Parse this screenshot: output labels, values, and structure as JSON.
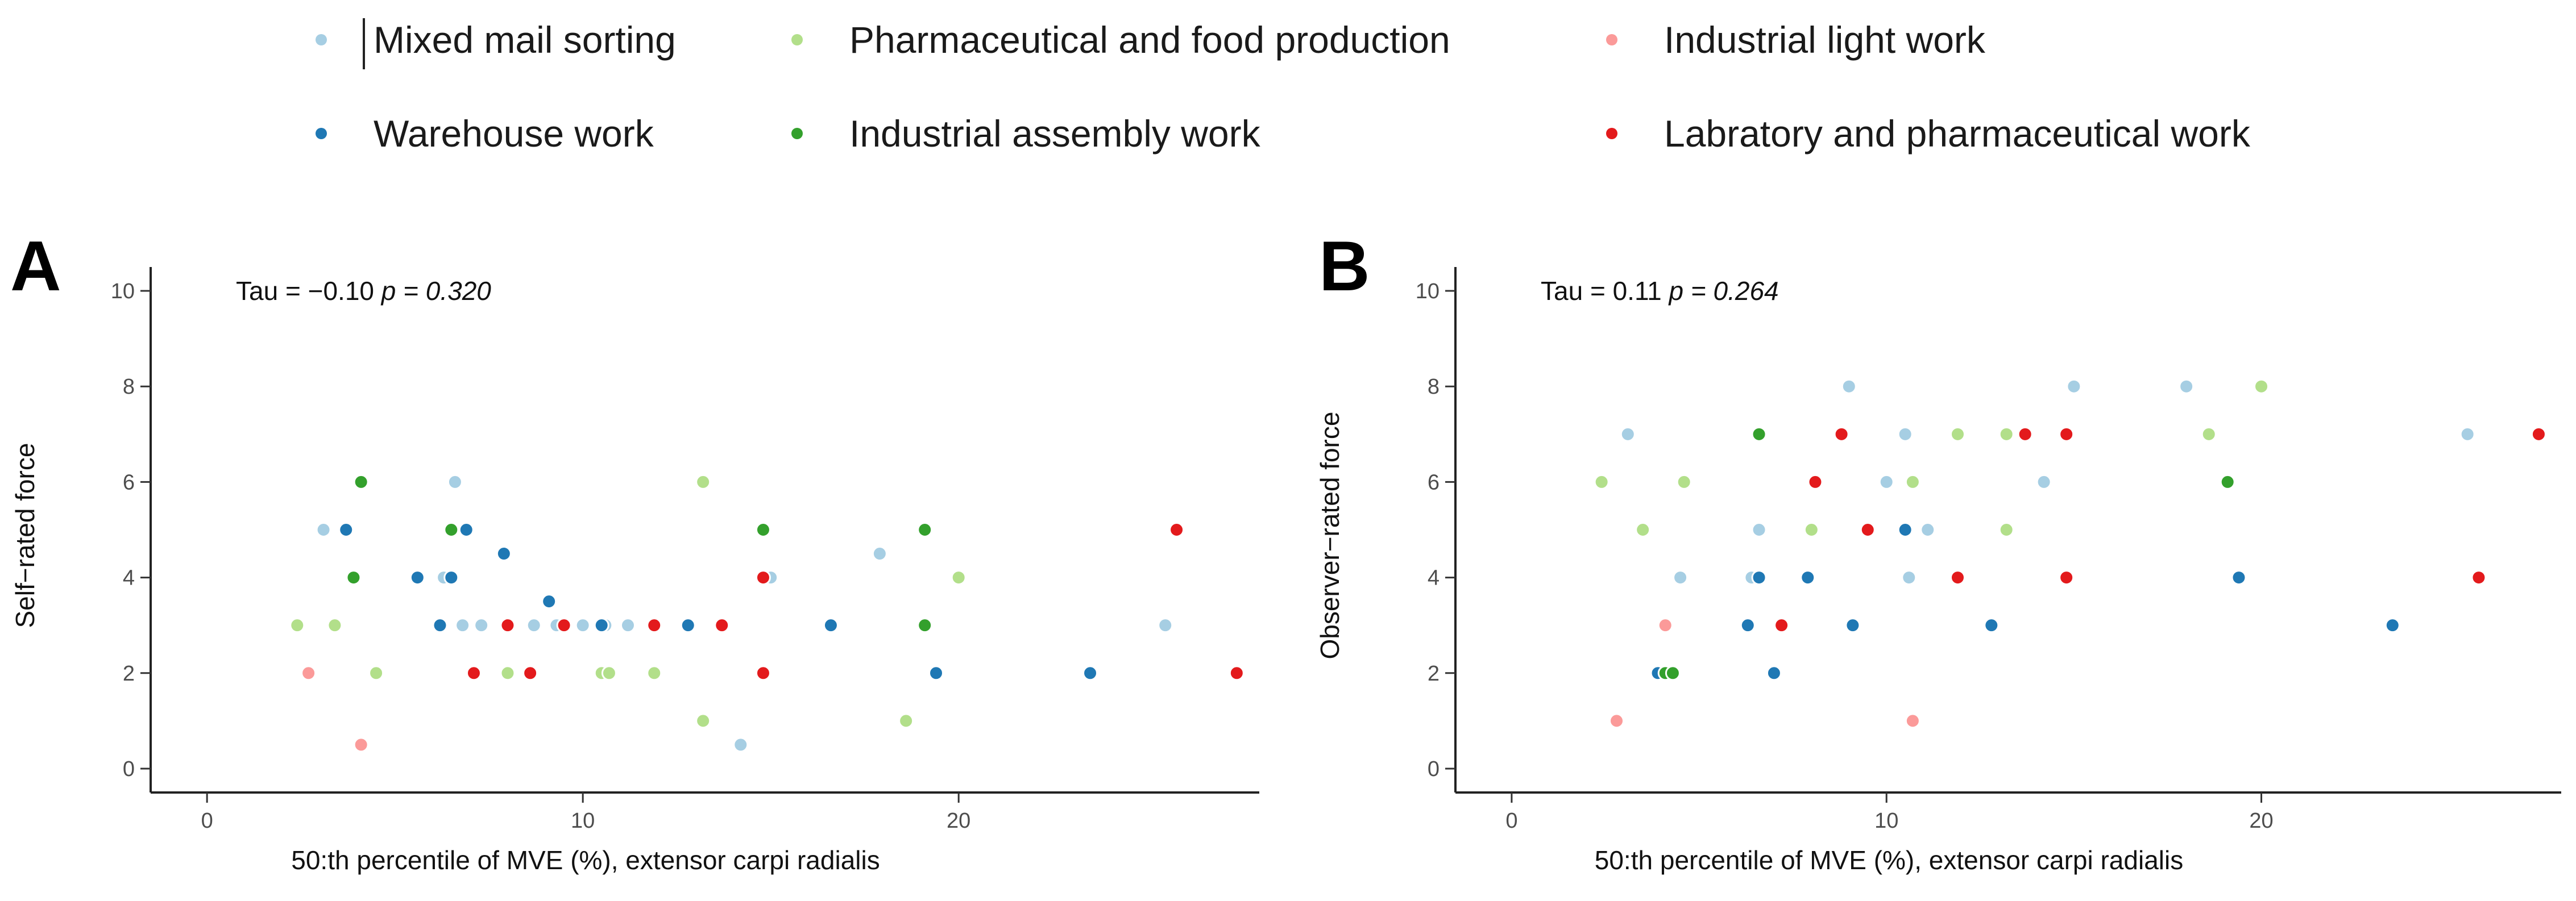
{
  "legend": {
    "items": [
      {
        "label": "Mixed mail sorting",
        "color": "#a6cee3"
      },
      {
        "label": "Pharmaceutical and food production",
        "color": "#b2df8a"
      },
      {
        "label": "Industrial light work",
        "color": "#fb9a99"
      },
      {
        "label": "Warehouse work",
        "color": "#1f78b4"
      },
      {
        "label": "Industrial assembly work",
        "color": "#33a02c"
      },
      {
        "label": "Labratory and pharmaceutical work",
        "color": "#e31a1c"
      }
    ]
  },
  "panels": [
    {
      "letter": "A",
      "stat_text": "Tau = −0.10 ",
      "p_text": "p = 0.320"
    },
    {
      "letter": "B",
      "stat_text": "Tau = 0.11 ",
      "p_text": "p = 0.264"
    }
  ],
  "chart_data": [
    {
      "type": "scatter",
      "title": "",
      "xlabel": "50:th percentile of MVE (%), extensor carpi radialis",
      "ylabel": "Self−rated force",
      "xlim": [
        -1.5,
        28
      ],
      "ylim": [
        -0.5,
        10.5
      ],
      "xticks": [
        0,
        10,
        20
      ],
      "yticks": [
        0,
        2,
        4,
        6,
        8,
        10
      ],
      "grid": false,
      "series": [
        {
          "name": "Mixed mail sorting",
          "color": "#a6cee3",
          "points": [
            [
              3.1,
              5
            ],
            [
              6.3,
              4
            ],
            [
              6.6,
              6
            ],
            [
              6.8,
              3
            ],
            [
              7.3,
              3
            ],
            [
              8.7,
              3
            ],
            [
              9.3,
              3
            ],
            [
              10,
              3
            ],
            [
              10.6,
              3
            ],
            [
              11.2,
              3
            ],
            [
              15,
              4
            ],
            [
              14.2,
              0.5
            ],
            [
              17.9,
              4.5
            ],
            [
              25.5,
              3
            ]
          ]
        },
        {
          "name": "Pharmaceutical and food production",
          "color": "#b2df8a",
          "points": [
            [
              2.4,
              3
            ],
            [
              3.4,
              3
            ],
            [
              4.5,
              2
            ],
            [
              8,
              2
            ],
            [
              10.5,
              2
            ],
            [
              10.7,
              2
            ],
            [
              11.9,
              2
            ],
            [
              13.2,
              6
            ],
            [
              13.2,
              1
            ],
            [
              18.6,
              1
            ],
            [
              20,
              4
            ]
          ]
        },
        {
          "name": "Industrial light work",
          "color": "#fb9a99",
          "points": [
            [
              2.7,
              2
            ],
            [
              4.1,
              0.5
            ]
          ]
        },
        {
          "name": "Warehouse work",
          "color": "#1f78b4",
          "points": [
            [
              3.7,
              5
            ],
            [
              5.6,
              4
            ],
            [
              6.2,
              3
            ],
            [
              6.5,
              4
            ],
            [
              6.9,
              5
            ],
            [
              7.9,
              4.5
            ],
            [
              9.1,
              3.5
            ],
            [
              10.5,
              3
            ],
            [
              12.8,
              3
            ],
            [
              16.6,
              3
            ],
            [
              19.4,
              2
            ],
            [
              23.5,
              2
            ]
          ]
        },
        {
          "name": "Industrial assembly work",
          "color": "#33a02c",
          "points": [
            [
              4.1,
              6
            ],
            [
              3.9,
              4
            ],
            [
              6.5,
              5
            ],
            [
              14.8,
              5
            ],
            [
              19.1,
              5
            ],
            [
              19.1,
              3
            ]
          ]
        },
        {
          "name": "Labratory and pharmaceutical work",
          "color": "#e31a1c",
          "points": [
            [
              7.1,
              2
            ],
            [
              8,
              3
            ],
            [
              8.6,
              2
            ],
            [
              9.5,
              3
            ],
            [
              11.9,
              3
            ],
            [
              13.7,
              3
            ],
            [
              14.8,
              4
            ],
            [
              14.8,
              2
            ],
            [
              25.8,
              5
            ],
            [
              27.4,
              2
            ]
          ]
        }
      ]
    },
    {
      "type": "scatter",
      "title": "",
      "xlabel": "50:th percentile of MVE (%), extensor carpi radialis",
      "ylabel": "Observer−rated force",
      "xlim": [
        -1.5,
        28
      ],
      "ylim": [
        -0.5,
        10.5
      ],
      "xticks": [
        0,
        10,
        20
      ],
      "yticks": [
        0,
        2,
        4,
        6,
        8,
        10
      ],
      "grid": false,
      "series": [
        {
          "name": "Mixed mail sorting",
          "color": "#a6cee3",
          "points": [
            [
              3.1,
              7
            ],
            [
              4.5,
              4
            ],
            [
              6.4,
              4
            ],
            [
              6.6,
              5
            ],
            [
              9,
              8
            ],
            [
              10,
              6
            ],
            [
              10.5,
              7
            ],
            [
              10.6,
              4
            ],
            [
              11.1,
              5
            ],
            [
              14.2,
              6
            ],
            [
              15,
              8
            ],
            [
              18,
              8
            ],
            [
              25.5,
              7
            ]
          ]
        },
        {
          "name": "Pharmaceutical and food production",
          "color": "#b2df8a",
          "points": [
            [
              2.4,
              6
            ],
            [
              3.5,
              5
            ],
            [
              4.6,
              6
            ],
            [
              8,
              5
            ],
            [
              10.7,
              6
            ],
            [
              11.9,
              7
            ],
            [
              13.2,
              7
            ],
            [
              13.2,
              5
            ],
            [
              18.6,
              7
            ],
            [
              20,
              8
            ]
          ]
        },
        {
          "name": "Industrial light work",
          "color": "#fb9a99",
          "points": [
            [
              2.8,
              1
            ],
            [
              4.1,
              3
            ],
            [
              10.7,
              1
            ]
          ]
        },
        {
          "name": "Warehouse work",
          "color": "#1f78b4",
          "points": [
            [
              3.9,
              2
            ],
            [
              6.3,
              3
            ],
            [
              6.6,
              4
            ],
            [
              7,
              2
            ],
            [
              7.9,
              4
            ],
            [
              9.1,
              3
            ],
            [
              10.5,
              5
            ],
            [
              12.8,
              3
            ],
            [
              19.4,
              4
            ],
            [
              23.5,
              3
            ]
          ]
        },
        {
          "name": "Industrial assembly work",
          "color": "#33a02c",
          "points": [
            [
              4.1,
              2
            ],
            [
              4.3,
              2
            ],
            [
              6.6,
              7
            ],
            [
              19.1,
              6
            ]
          ]
        },
        {
          "name": "Labratory and pharmaceutical work",
          "color": "#e31a1c",
          "points": [
            [
              7.2,
              3
            ],
            [
              8.8,
              7
            ],
            [
              8.1,
              6
            ],
            [
              9.5,
              5
            ],
            [
              11.9,
              4
            ],
            [
              13.7,
              7
            ],
            [
              14.8,
              7
            ],
            [
              14.8,
              4
            ],
            [
              25.8,
              4
            ],
            [
              27.4,
              7
            ]
          ]
        }
      ]
    }
  ]
}
